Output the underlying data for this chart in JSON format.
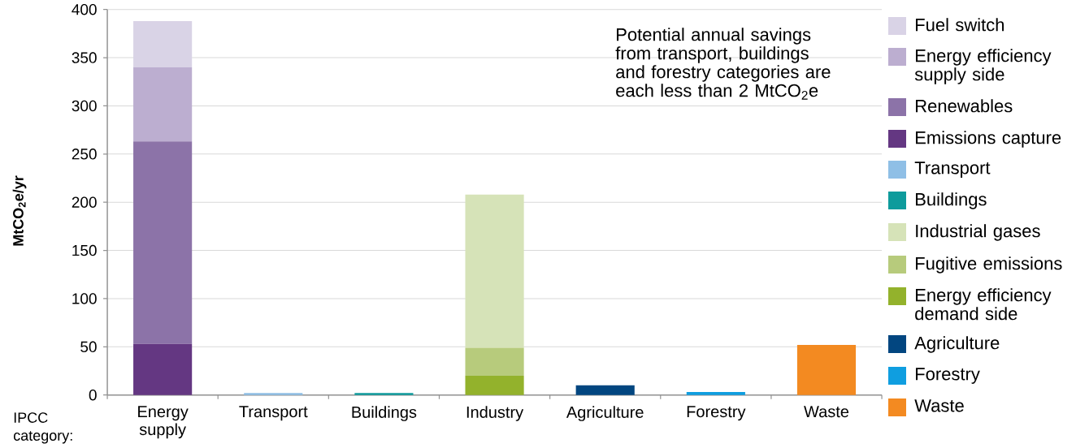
{
  "chart_data": {
    "type": "bar",
    "stacked": true,
    "ylabel": "MtCO$_{2}$e/yr",
    "categories": [
      "Energy supply",
      "Transport",
      "Buildings",
      "Industry",
      "Agriculture",
      "Forestry",
      "Waste"
    ],
    "series": [
      {
        "name": "Emissions capture",
        "color": "#643782",
        "values": [
          53,
          null,
          null,
          null,
          null,
          null,
          null
        ]
      },
      {
        "name": "Renewables",
        "color": "#8c73a8",
        "values": [
          210,
          null,
          null,
          null,
          null,
          null,
          null
        ]
      },
      {
        "name": "Energy efficiency supply side",
        "color": "#bcaed0",
        "values": [
          77,
          null,
          null,
          null,
          null,
          null,
          null
        ]
      },
      {
        "name": "Fuel switch",
        "color": "#d9d3e6",
        "values": [
          48,
          null,
          null,
          null,
          null,
          null,
          null
        ]
      },
      {
        "name": "Transport",
        "color": "#8fbfe6",
        "values": [
          null,
          2,
          null,
          null,
          null,
          null,
          null
        ]
      },
      {
        "name": "Buildings",
        "color": "#0e9b9c",
        "values": [
          null,
          null,
          2,
          null,
          null,
          null,
          null
        ]
      },
      {
        "name": "Energy efficiency demand side",
        "color": "#93b22c",
        "values": [
          null,
          null,
          null,
          20,
          null,
          null,
          null
        ]
      },
      {
        "name": "Fugitive emissions",
        "color": "#b7cb7c",
        "values": [
          null,
          null,
          null,
          29,
          null,
          null,
          null
        ]
      },
      {
        "name": "Industrial gases",
        "color": "#d6e3b8",
        "values": [
          null,
          null,
          null,
          159,
          null,
          null,
          null
        ]
      },
      {
        "name": "Agriculture",
        "color": "#024680",
        "values": [
          null,
          null,
          null,
          null,
          10,
          null,
          null
        ]
      },
      {
        "name": "Forestry",
        "color": "#0f9ee0",
        "values": [
          null,
          null,
          null,
          null,
          null,
          3,
          null
        ]
      },
      {
        "name": "Waste",
        "color": "#f38a21",
        "values": [
          null,
          null,
          null,
          null,
          null,
          null,
          52
        ]
      }
    ],
    "ylim": [
      0,
      400
    ],
    "yticks": [
      0,
      50,
      100,
      150,
      200,
      250,
      300,
      350,
      400
    ],
    "grid": "y",
    "legend": "right",
    "annotations": [
      "Potential annual savings from transport, buildings and forestry categories are each less than 2 MtCO$_{2}$e",
      "IPCC category:"
    ]
  }
}
